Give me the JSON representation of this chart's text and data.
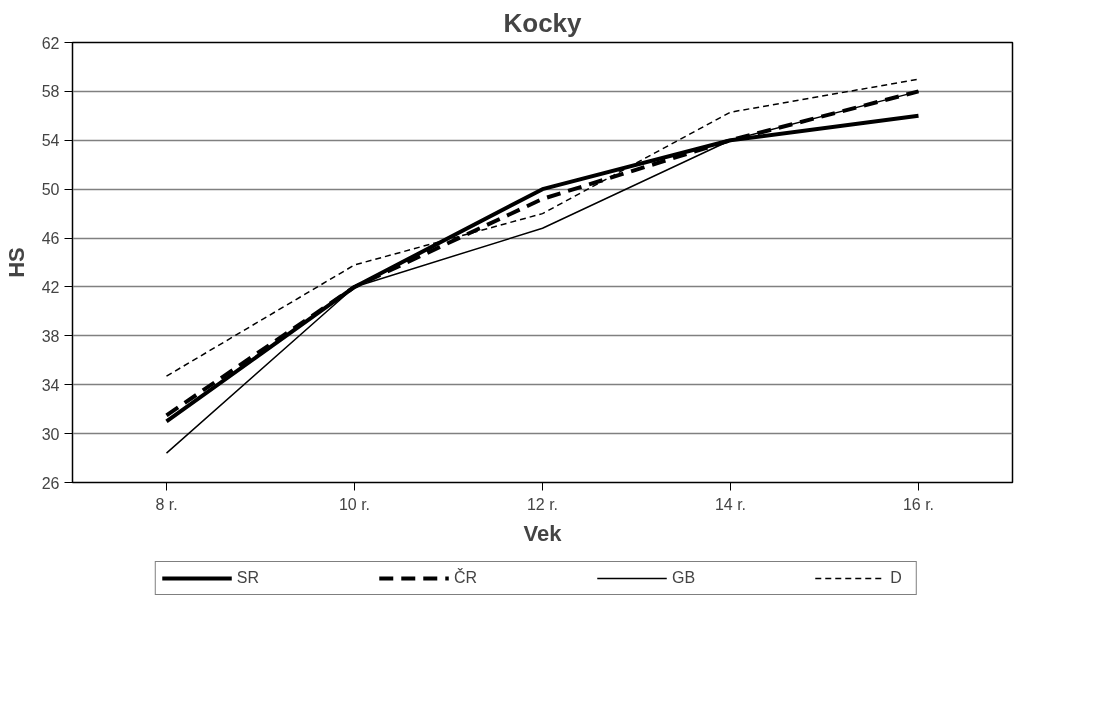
{
  "chart_data": {
    "type": "line",
    "title": "Kocky",
    "xlabel": "Vek",
    "ylabel": "HS",
    "categories": [
      "8 r.",
      "10 r.",
      "12 r.",
      "14 r.",
      "16 r."
    ],
    "series": [
      {
        "name": "SR",
        "color": "#000000",
        "values": [
          31,
          42,
          50,
          54,
          56
        ],
        "line_style": "solid"
      },
      {
        "name": "ČR",
        "color": "#000000",
        "values": [
          31.5,
          42,
          49.2,
          54,
          58
        ],
        "line_style": "dashed"
      },
      {
        "name": "GB",
        "color": "#000000",
        "values": [
          28.4,
          42,
          46.8,
          54,
          58
        ],
        "line_style": "solid"
      },
      {
        "name": "D",
        "color": "#000000",
        "values": [
          34.7,
          43.8,
          48,
          56.3,
          59
        ],
        "line_style": "dashed"
      }
    ],
    "ylim": [
      26,
      62
    ],
    "yticks": [
      26,
      30,
      34,
      38,
      42,
      46,
      50,
      54,
      58,
      62
    ],
    "grid": "y",
    "legend": "bottom",
    "marker": "none"
  }
}
